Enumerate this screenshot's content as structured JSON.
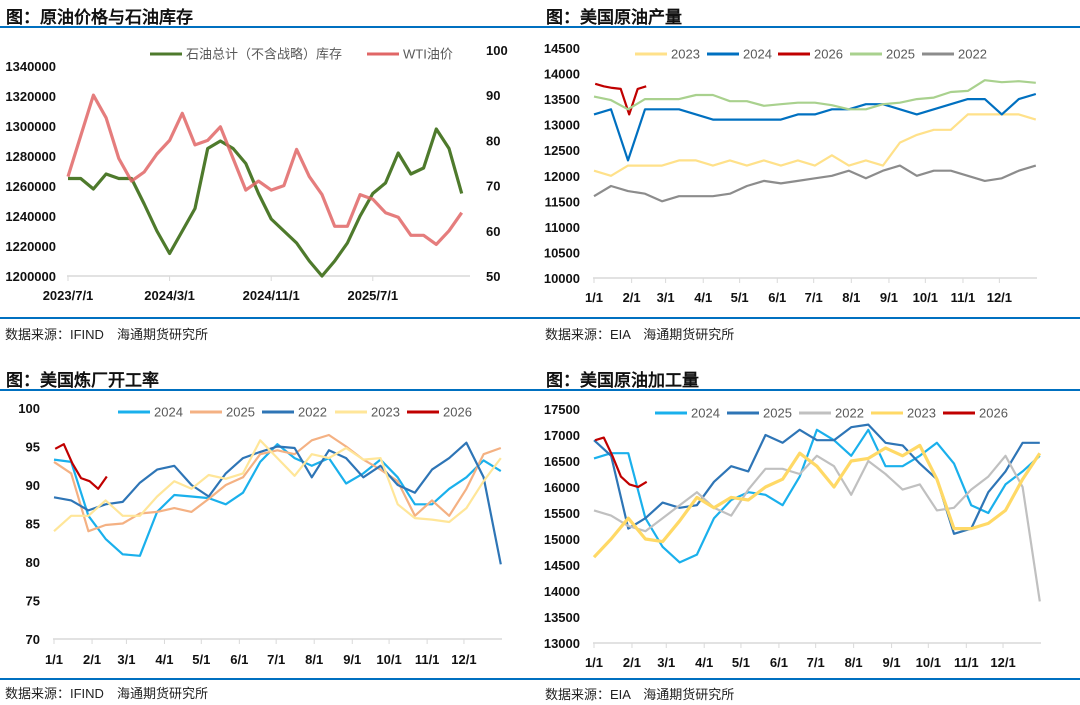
{
  "chart_data": [
    {
      "type": "line",
      "title": "图：原油价格与石油库存",
      "source": "数据来源：IFIND　海通期货研究所",
      "frequency": "monthly",
      "x_start": "2023/7",
      "xticks": [
        "2023/7/1",
        "2024/3/1",
        "2024/11/1",
        "2025/7/1"
      ],
      "y_left": {
        "ylim": [
          1200000,
          1340000
        ],
        "ticks": [
          1200000,
          1220000,
          1240000,
          1260000,
          1280000,
          1300000,
          1320000,
          1340000
        ]
      },
      "y_right": {
        "ylim": [
          50,
          100
        ],
        "ticks": [
          50,
          60,
          70,
          80,
          90,
          100
        ]
      },
      "legend": "top",
      "series": [
        {
          "name": "石油总计（不含战略）库存",
          "axis": "left",
          "color": "#4e7a2c",
          "values": [
            1265000,
            1265000,
            1258000,
            1268000,
            1265000,
            1265000,
            1248000,
            1230000,
            1215000,
            1230000,
            1245000,
            1285000,
            1290000,
            1285000,
            1275000,
            1255000,
            1238000,
            1230000,
            1222000,
            1210000,
            1200000,
            1210000,
            1222000,
            1240000,
            1255000,
            1262000,
            1282000,
            1268000,
            1272000,
            1298000,
            1285000,
            1255000
          ]
        },
        {
          "name": "WTI油价",
          "axis": "right",
          "color": "#e06666",
          "values": [
            72,
            81,
            90,
            85,
            76,
            71,
            73,
            77,
            80,
            86,
            79,
            80,
            83,
            76,
            69,
            71,
            69,
            70,
            78,
            72,
            68,
            61,
            61,
            68,
            67,
            64,
            63,
            59,
            59,
            57,
            60,
            64
          ]
        }
      ]
    },
    {
      "type": "line",
      "title": "图：美国原油产量",
      "source": "数据来源：EIA　海通期货研究所",
      "xticks": [
        "1/1",
        "2/1",
        "3/1",
        "4/1",
        "5/1",
        "6/1",
        "7/1",
        "8/1",
        "9/1",
        "10/1",
        "11/1",
        "12/1"
      ],
      "ylim": [
        10000,
        14500
      ],
      "yticks": [
        10000,
        10500,
        11000,
        11500,
        12000,
        12500,
        13000,
        13500,
        14000,
        14500
      ],
      "legend": "top",
      "series": [
        {
          "name": "2023",
          "color": "#ffe18a",
          "frequency": "biweekly",
          "values": [
            12100,
            12000,
            12200,
            12200,
            12200,
            12300,
            12300,
            12200,
            12300,
            12200,
            12300,
            12200,
            12300,
            12200,
            12400,
            12200,
            12300,
            12200,
            12650,
            12800,
            12900,
            12900,
            13200,
            13200,
            13200,
            13200,
            13100
          ]
        },
        {
          "name": "2024",
          "color": "#0070c0",
          "frequency": "biweekly",
          "values": [
            13200,
            13300,
            12300,
            13300,
            13300,
            13300,
            13200,
            13100,
            13100,
            13100,
            13100,
            13100,
            13200,
            13200,
            13300,
            13300,
            13400,
            13400,
            13300,
            13200,
            13300,
            13400,
            13500,
            13500,
            13200,
            13500,
            13600
          ]
        },
        {
          "name": "2026",
          "color": "#c00000",
          "frequency": "weekly",
          "values": [
            13800,
            13750,
            13720,
            13700,
            13200,
            13700,
            13750
          ]
        },
        {
          "name": "2025",
          "color": "#a9d18e",
          "frequency": "biweekly",
          "values": [
            13550,
            13480,
            13300,
            13500,
            13500,
            13500,
            13580,
            13580,
            13460,
            13460,
            13370,
            13400,
            13430,
            13430,
            13380,
            13300,
            13300,
            13400,
            13430,
            13500,
            13530,
            13640,
            13660,
            13870,
            13830,
            13850,
            13820
          ]
        },
        {
          "name": "2022",
          "color": "#8c8c8c",
          "frequency": "biweekly",
          "values": [
            11600,
            11800,
            11700,
            11650,
            11500,
            11600,
            11600,
            11600,
            11650,
            11800,
            11900,
            11850,
            11900,
            11950,
            12000,
            12100,
            11950,
            12100,
            12200,
            12000,
            12100,
            12100,
            12000,
            11900,
            11950,
            12100,
            12200
          ]
        }
      ]
    },
    {
      "type": "line",
      "title": "图：美国炼厂开工率",
      "source": "数据来源：IFIND　海通期货研究所",
      "xticks": [
        "1/1",
        "2/1",
        "3/1",
        "4/1",
        "5/1",
        "6/1",
        "7/1",
        "8/1",
        "9/1",
        "10/1",
        "11/1",
        "12/1"
      ],
      "ylim": [
        70,
        100
      ],
      "yticks": [
        70,
        75,
        80,
        85,
        90,
        95,
        100
      ],
      "legend": "top",
      "series": [
        {
          "name": "2024",
          "color": "#1ab0ec",
          "frequency": "biweekly",
          "values": [
            93.3,
            93.0,
            86.0,
            83.0,
            81.0,
            80.8,
            86.5,
            88.7,
            88.5,
            88.3,
            87.5,
            89.0,
            93.0,
            95.3,
            93.5,
            92.5,
            93.5,
            90.2,
            91.5,
            93.3,
            91.0,
            87.5,
            87.5,
            89.5,
            91.0,
            93.2,
            91.8
          ]
        },
        {
          "name": "2025",
          "color": "#f4b183",
          "frequency": "biweekly",
          "values": [
            93.0,
            91.5,
            84.0,
            84.8,
            85.0,
            86.3,
            86.5,
            87.0,
            86.5,
            88.2,
            90.0,
            91.0,
            94.0,
            94.5,
            94.0,
            95.8,
            96.5,
            95.0,
            93.3,
            92.0,
            90.5,
            86.0,
            88.0,
            86.0,
            89.5,
            94.0,
            94.8
          ]
        },
        {
          "name": "2022",
          "color": "#2e75b6",
          "frequency": "biweekly",
          "values": [
            88.4,
            88.0,
            86.7,
            87.5,
            87.8,
            90.3,
            92.0,
            92.5,
            90.0,
            88.5,
            91.5,
            93.5,
            94.3,
            95.0,
            94.8,
            91.0,
            94.5,
            93.5,
            91.0,
            92.5,
            90.0,
            89.0,
            92.0,
            93.5,
            95.5,
            91.0,
            79.7
          ]
        },
        {
          "name": "2023",
          "color": "#ffe699",
          "frequency": "biweekly",
          "values": [
            84.0,
            86.0,
            86.0,
            88.0,
            86.0,
            86.0,
            88.5,
            90.5,
            89.5,
            91.3,
            90.8,
            91.5,
            95.8,
            93.5,
            91.2,
            94.0,
            93.5,
            94.8,
            93.3,
            93.5,
            87.5,
            85.7,
            85.5,
            85.2,
            87.0,
            90.5,
            93.5
          ]
        },
        {
          "name": "2026",
          "color": "#c00000",
          "frequency": "weekly",
          "values": [
            94.7,
            95.3,
            92.8,
            90.9,
            90.5,
            89.5,
            91.1
          ]
        }
      ]
    },
    {
      "type": "line",
      "title": "图：美国原油加工量",
      "source": "数据来源：EIA　海通期货研究所",
      "xticks": [
        "1/1",
        "2/1",
        "3/1",
        "4/1",
        "5/1",
        "6/1",
        "7/1",
        "8/1",
        "9/1",
        "10/1",
        "11/1",
        "12/1"
      ],
      "ylim": [
        13000,
        17500
      ],
      "yticks": [
        13000,
        13500,
        14000,
        14500,
        15000,
        15500,
        16000,
        16500,
        17000,
        17500
      ],
      "legend": "top",
      "series": [
        {
          "name": "2024",
          "color": "#1ab0ec",
          "frequency": "biweekly",
          "values": [
            16550,
            16650,
            16650,
            15400,
            14850,
            14550,
            14700,
            15400,
            15750,
            15900,
            15850,
            15650,
            16200,
            17100,
            16900,
            16600,
            17100,
            16400,
            16400,
            16600,
            16850,
            16450,
            15650,
            15500,
            16050,
            16300,
            16600
          ]
        },
        {
          "name": "2025",
          "color": "#2e75b6",
          "frequency": "biweekly",
          "values": [
            16900,
            16600,
            15200,
            15400,
            15700,
            15600,
            15650,
            16100,
            16400,
            16300,
            17000,
            16850,
            17100,
            16900,
            16900,
            17150,
            17200,
            16850,
            16800,
            16450,
            16150,
            15100,
            15200,
            15900,
            16300,
            16850,
            16850
          ]
        },
        {
          "name": "2022",
          "color": "#c0c0c0",
          "frequency": "biweekly",
          "values": [
            15550,
            15450,
            15250,
            15150,
            15400,
            15650,
            15900,
            15600,
            15450,
            15950,
            16350,
            16350,
            16250,
            16600,
            16400,
            15850,
            16500,
            16250,
            15950,
            16050,
            15550,
            15600,
            15950,
            16200,
            16600,
            16000,
            13800
          ]
        },
        {
          "name": "2023",
          "color": "#ffd966",
          "frequency": "biweekly",
          "values": [
            14650,
            15000,
            15400,
            15000,
            14950,
            15350,
            15800,
            15600,
            15800,
            15750,
            16000,
            16150,
            16650,
            16400,
            16000,
            16500,
            16550,
            16750,
            16600,
            16800,
            16150,
            15200,
            15200,
            15300,
            15550,
            16150,
            16650
          ]
        },
        {
          "name": "2026",
          "color": "#c00000",
          "frequency": "weekly",
          "values": [
            16900,
            16950,
            16600,
            16200,
            16050,
            16000,
            16100
          ]
        }
      ]
    }
  ]
}
